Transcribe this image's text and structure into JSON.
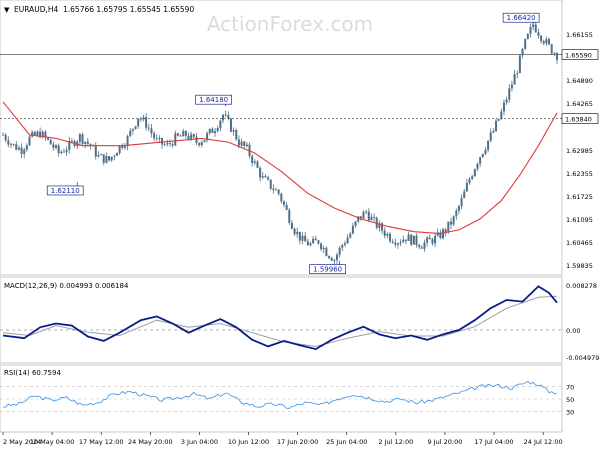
{
  "header": {
    "symbol": "EURAUD,H4",
    "ohlc": "1.65766 1.65795 1.65545 1.65590"
  },
  "watermark": "ActionForex.com",
  "colors": {
    "candle": "#4f6f87",
    "ma": "#e03a3a",
    "macd_line": "#0a1a8a",
    "macd_signal": "#9aa0a8",
    "rsi_line": "#3b8fe0",
    "annotation": "#1a2a9a",
    "grid": "#d8d8d8"
  },
  "chart_data": [
    {
      "type": "candlestick",
      "title": "EURAUD,H4",
      "ylim": [
        1.5965,
        1.67
      ],
      "y_ticks": [
        "1.66155",
        "1.65590",
        "1.64890",
        "1.64265",
        "1.63840",
        "1.62985",
        "1.62355",
        "1.61725",
        "1.61095",
        "1.60465",
        "1.59835"
      ],
      "x_ticks": [
        "2 May 2024",
        "10 May 04:00",
        "17 May 12:00",
        "24 May 20:00",
        "3 Jun 04:00",
        "10 Jun 12:00",
        "17 Jun 20:00",
        "25 Jun 04:00",
        "2 Jul 12:00",
        "9 Jul 20:00",
        "17 Jul 04:00",
        "24 Jul 12:00"
      ],
      "close_path": [
        [
          0,
          1.634
        ],
        [
          4,
          1.631
        ],
        [
          7,
          1.63
        ],
        [
          10,
          1.633
        ],
        [
          14,
          1.6345
        ],
        [
          18,
          1.6315
        ],
        [
          21,
          1.629
        ],
        [
          25,
          1.631
        ],
        [
          29,
          1.6335
        ],
        [
          33,
          1.631
        ],
        [
          36,
          1.628
        ],
        [
          40,
          1.627
        ],
        [
          43,
          1.63
        ],
        [
          47,
          1.633
        ],
        [
          51,
          1.639
        ],
        [
          54,
          1.637
        ],
        [
          58,
          1.632
        ],
        [
          62,
          1.631
        ],
        [
          65,
          1.633
        ],
        [
          69,
          1.634
        ],
        [
          73,
          1.632
        ],
        [
          76,
          1.633
        ],
        [
          80,
          1.636
        ],
        [
          83,
          1.6395
        ],
        [
          86,
          1.636
        ],
        [
          89,
          1.632
        ],
        [
          92,
          1.63
        ],
        [
          95,
          1.626
        ],
        [
          98,
          1.622
        ],
        [
          101,
          1.62
        ],
        [
          104,
          1.618
        ],
        [
          107,
          1.613
        ],
        [
          110,
          1.608
        ],
        [
          113,
          1.605
        ],
        [
          116,
          1.604
        ],
        [
          119,
          1.605
        ],
        [
          122,
          1.602
        ],
        [
          125,
          1.6
        ],
        [
          128,
          1.604
        ],
        [
          131,
          1.607
        ],
        [
          134,
          1.611
        ],
        [
          137,
          1.613
        ],
        [
          140,
          1.61
        ],
        [
          143,
          1.608
        ],
        [
          146,
          1.606
        ],
        [
          149,
          1.605
        ],
        [
          152,
          1.606
        ],
        [
          155,
          1.605
        ],
        [
          158,
          1.604
        ],
        [
          161,
          1.605
        ],
        [
          164,
          1.606
        ],
        [
          167,
          1.608
        ],
        [
          170,
          1.611
        ],
        [
          173,
          1.616
        ],
        [
          176,
          1.622
        ],
        [
          179,
          1.627
        ],
        [
          182,
          1.631
        ],
        [
          185,
          1.635
        ],
        [
          188,
          1.64
        ],
        [
          191,
          1.646
        ],
        [
          194,
          1.652
        ],
        [
          197,
          1.659
        ],
        [
          200,
          1.6642
        ],
        [
          203,
          1.661
        ],
        [
          206,
          1.658
        ],
        [
          209,
          1.6559
        ]
      ],
      "moving_average": [
        [
          0,
          1.643
        ],
        [
          10,
          1.634
        ],
        [
          20,
          1.633
        ],
        [
          30,
          1.631
        ],
        [
          45,
          1.631
        ],
        [
          60,
          1.632
        ],
        [
          75,
          1.633
        ],
        [
          85,
          1.632
        ],
        [
          95,
          1.629
        ],
        [
          105,
          1.624
        ],
        [
          115,
          1.618
        ],
        [
          125,
          1.614
        ],
        [
          135,
          1.611
        ],
        [
          145,
          1.609
        ],
        [
          155,
          1.6075
        ],
        [
          165,
          1.607
        ],
        [
          172,
          1.608
        ],
        [
          180,
          1.611
        ],
        [
          188,
          1.616
        ],
        [
          195,
          1.623
        ],
        [
          202,
          1.631
        ],
        [
          209,
          1.64
        ]
      ],
      "annotations": [
        {
          "label": "1.66420",
          "x": 200,
          "value": 1.6642
        },
        {
          "label": "1.64180",
          "x": 84,
          "value": 1.6418
        },
        {
          "label": "1.62110",
          "x": 28,
          "value": 1.6211
        },
        {
          "label": "1.59960",
          "x": 127,
          "value": 1.5996
        }
      ],
      "price_labels": [
        "1.65590",
        "1.63840"
      ],
      "horizontal_lines": [
        {
          "value": 1.6559,
          "style": "solid"
        },
        {
          "value": 1.6384,
          "style": "dashed"
        }
      ],
      "grid": false
    },
    {
      "type": "line",
      "title": "MACD(12,26,9) 0.004993 0.006184",
      "ylim": [
        -0.0055,
        0.0088
      ],
      "y_ticks": [
        "0.008278",
        "0.00",
        "-0.004979"
      ],
      "series": [
        {
          "role": "macd",
          "values": [
            [
              0,
              -0.001
            ],
            [
              8,
              -0.0015
            ],
            [
              14,
              0.0005
            ],
            [
              20,
              0.0012
            ],
            [
              26,
              0.0008
            ],
            [
              32,
              -0.0012
            ],
            [
              38,
              -0.002
            ],
            [
              44,
              -0.0005
            ],
            [
              52,
              0.0018
            ],
            [
              58,
              0.0025
            ],
            [
              64,
              0.0012
            ],
            [
              70,
              -0.0005
            ],
            [
              76,
              0.0008
            ],
            [
              82,
              0.002
            ],
            [
              88,
              0.0005
            ],
            [
              94,
              -0.0018
            ],
            [
              100,
              -0.003
            ],
            [
              106,
              -0.002
            ],
            [
              112,
              -0.0028
            ],
            [
              118,
              -0.0035
            ],
            [
              124,
              -0.0018
            ],
            [
              130,
              -0.0005
            ],
            [
              136,
              0.0006
            ],
            [
              142,
              -0.0008
            ],
            [
              148,
              -0.0015
            ],
            [
              154,
              -0.001
            ],
            [
              160,
              -0.0018
            ],
            [
              166,
              -0.0008
            ],
            [
              172,
              0.0
            ],
            [
              178,
              0.0018
            ],
            [
              184,
              0.004
            ],
            [
              190,
              0.0055
            ],
            [
              196,
              0.0052
            ],
            [
              202,
              0.008
            ],
            [
              206,
              0.0068
            ],
            [
              209,
              0.005
            ]
          ]
        },
        {
          "role": "signal",
          "values": [
            [
              0,
              -0.0005
            ],
            [
              10,
              -0.001
            ],
            [
              20,
              0.0008
            ],
            [
              32,
              -0.0004
            ],
            [
              44,
              -0.001
            ],
            [
              58,
              0.0018
            ],
            [
              70,
              0.0005
            ],
            [
              82,
              0.0012
            ],
            [
              94,
              -0.0005
            ],
            [
              106,
              -0.0022
            ],
            [
              118,
              -0.003
            ],
            [
              130,
              -0.0015
            ],
            [
              142,
              -0.0003
            ],
            [
              154,
              -0.0011
            ],
            [
              166,
              -0.0011
            ],
            [
              178,
              0.0006
            ],
            [
              190,
              0.004
            ],
            [
              202,
              0.006
            ],
            [
              209,
              0.0062
            ]
          ]
        }
      ]
    },
    {
      "type": "line",
      "title": "RSI(14) 60.7594",
      "ylim": [
        0,
        100
      ],
      "y_ticks": [
        "70",
        "50",
        "30"
      ],
      "series": [
        {
          "role": "rsi",
          "values": [
            [
              0,
              38
            ],
            [
              6,
              42
            ],
            [
              12,
              55
            ],
            [
              18,
              48
            ],
            [
              24,
              52
            ],
            [
              30,
              40
            ],
            [
              36,
              45
            ],
            [
              42,
              58
            ],
            [
              48,
              62
            ],
            [
              54,
              55
            ],
            [
              60,
              48
            ],
            [
              66,
              52
            ],
            [
              72,
              58
            ],
            [
              78,
              50
            ],
            [
              84,
              60
            ],
            [
              90,
              45
            ],
            [
              96,
              38
            ],
            [
              102,
              42
            ],
            [
              108,
              36
            ],
            [
              114,
              44
            ],
            [
              120,
              40
            ],
            [
              126,
              50
            ],
            [
              132,
              58
            ],
            [
              138,
              52
            ],
            [
              144,
              46
            ],
            [
              150,
              50
            ],
            [
              156,
              44
            ],
            [
              162,
              48
            ],
            [
              168,
              55
            ],
            [
              174,
              62
            ],
            [
              180,
              70
            ],
            [
              186,
              72
            ],
            [
              192,
              68
            ],
            [
              198,
              78
            ],
            [
              202,
              74
            ],
            [
              206,
              62
            ],
            [
              209,
              61
            ]
          ]
        }
      ]
    }
  ]
}
